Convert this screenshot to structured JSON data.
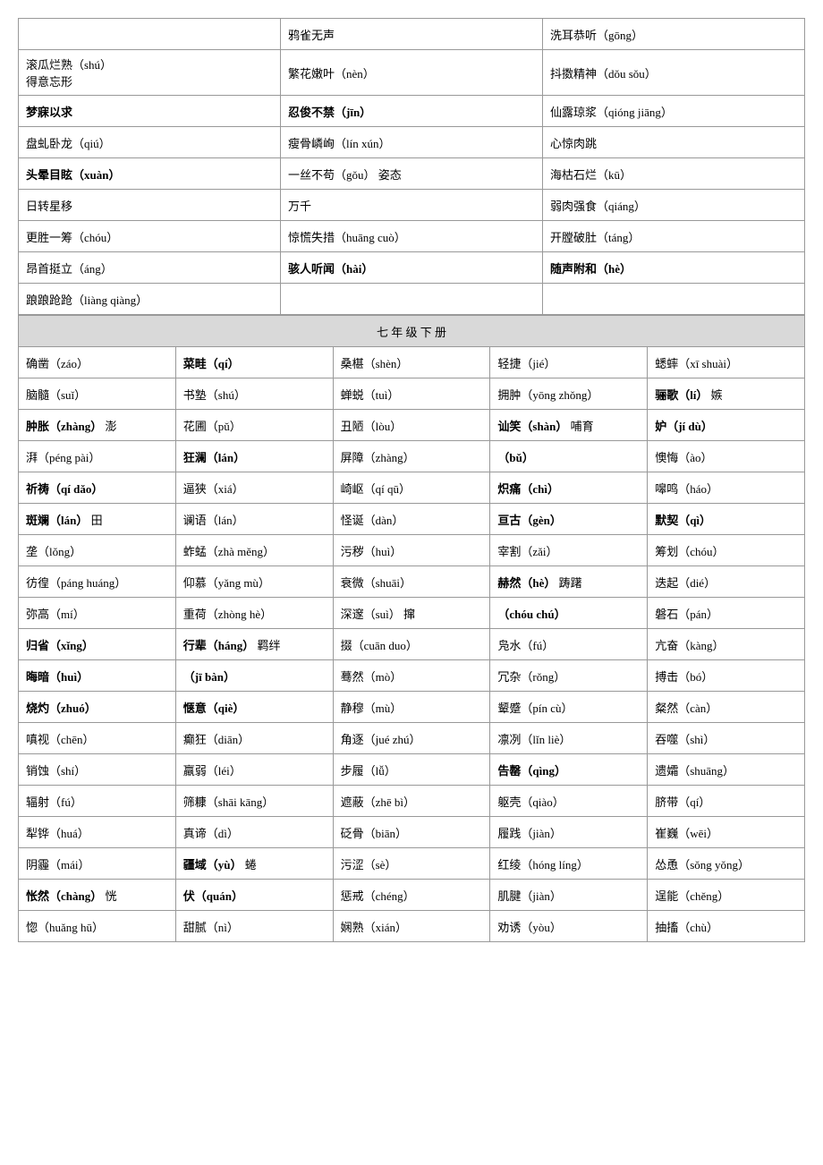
{
  "table1": {
    "rows": [
      [
        "",
        "鸦雀无声",
        "洗耳恭听（gōng）"
      ],
      [
        "滚瓜烂熟（shú）\n得意忘形",
        "繁花嫩叶（nèn）",
        "抖擞精神（dǒu sǒu）"
      ],
      [
        "梦寐以求",
        "忍俊不禁（jīn）",
        "仙露琼浆（qióng jiāng）"
      ],
      [
        "盘虬卧龙（qiú）",
        "瘦骨嶙峋（lín xún）",
        "心惊肉跳"
      ],
      [
        "头晕目眩（xuàn）",
        "一丝不苟（gǒu）  姿态",
        "海枯石烂（kū）"
      ],
      [
        "日转星移",
        "万千",
        "弱肉强食（qiáng）"
      ],
      [
        "更胜一筹（chóu）",
        "惊慌失措（huāng cuò）",
        "开膛破肚（táng）"
      ],
      [
        "昂首挺立（áng）",
        "骇人听闻（hài）",
        "随声附和（hè）"
      ],
      [
        "踉踉跄跄（liàng qiàng）",
        "",
        ""
      ]
    ],
    "bold_cells": [
      [
        2,
        0
      ],
      [
        4,
        0
      ],
      [
        2,
        1
      ],
      [
        7,
        1
      ],
      [
        7,
        2
      ]
    ]
  },
  "section_title": "七 年 级 下 册",
  "table2": {
    "rows": [
      [
        "确凿（záo）",
        "菜畦（qí）",
        "桑椹（shèn）",
        "轻捷（jié）",
        "蟋蟀（xī shuài）"
      ],
      [
        "脑髓（suǐ）",
        "书塾（shú）",
        "蝉蜕（tuì）",
        "拥肿（yōng zhǒng）",
        "骊歌（lí）  嫉"
      ],
      [
        "肿胀（zhàng）  澎",
        "花圃（pǔ）",
        "丑陋（lòu）",
        "讪笑（shàn）  哺育",
        "妒（jí dù）"
      ],
      [
        "湃（péng pài）",
        "狂澜（lán）",
        "屏障（zhàng）",
        "（bǔ）",
        "懊悔（ào）"
      ],
      [
        "祈祷（qí dǎo）",
        "逼狭（xiá）",
        "崎岖（qí qū）",
        "炽痛（chì）",
        "嗥鸣（háo）"
      ],
      [
        "斑斓（lán）  田",
        "谰语（lán）",
        "怪诞（dàn）",
        "亘古（gèn）",
        "默契（qì）"
      ],
      [
        "垄（lǒng）",
        "蚱蜢（zhà měng）",
        "污秽（huì）",
        "宰割（zǎi）",
        "筹划（chóu）"
      ],
      [
        "彷徨（páng huáng）",
        "仰慕（yǎng mù）",
        "衰微（shuāi）",
        "赫然（hè）  踌躇",
        "迭起（dié）"
      ],
      [
        "弥高（mí）",
        "重荷（zhòng hè）",
        "深邃（suì）  撺",
        "（chóu chú）",
        "磐石（pán）"
      ],
      [
        "归省（xǐng）",
        "行辈（háng）  羁绊",
        "掇（cuān duo）",
        "凫水（fú）",
        "亢奋（kàng）"
      ],
      [
        "晦暗（huì）",
        "（jī bàn）",
        "蓦然（mò）",
        "冗杂（rǒng）",
        "搏击（bó）"
      ],
      [
        "烧灼（zhuó）",
        "惬意（qiè）",
        "静穆（mù）",
        "颦蹙（pín cù）",
        "粲然（càn）"
      ],
      [
        "嗔视（chēn）",
        "癫狂（diān）",
        "角逐（jué zhú）",
        "凛冽（lǐn liè）",
        "吞噬（shì）"
      ],
      [
        "销蚀（shí）",
        "羸弱（léi）",
        "步履（lǚ）",
        "告罄（qìng）",
        "遗孀（shuāng）"
      ],
      [
        "辐射（fú）",
        "筛糠（shāi kāng）",
        "遮蔽（zhē bì）",
        "躯壳（qiào）",
        "脐带（qí）"
      ],
      [
        "犁铧（huá）",
        "真谛（dì）",
        "砭骨（biān）",
        "履践（jiàn）",
        "崔巍（wēi）"
      ],
      [
        "阴霾（mái）",
        "疆域（yù）  蜷",
        "污涩（sè）",
        "红绫（hóng líng）",
        "怂恿（sǒng yǒng）"
      ],
      [
        "怅然（chàng）  恍",
        "伏（quán）",
        "惩戒（chéng）",
        "肌腱（jiàn）",
        "逞能（chěng）"
      ],
      [
        "惚（huǎng hū）",
        "甜腻（nì）",
        "娴熟（xián）",
        "劝诱（yòu）",
        "抽搐（chù）"
      ]
    ],
    "bold_cells": [
      [
        0,
        1
      ],
      [
        2,
        0
      ],
      [
        3,
        1
      ],
      [
        4,
        0
      ],
      [
        4,
        3
      ],
      [
        5,
        0
      ],
      [
        5,
        3
      ],
      [
        5,
        4
      ],
      [
        8,
        3
      ],
      [
        9,
        0
      ],
      [
        10,
        0
      ],
      [
        11,
        0
      ],
      [
        11,
        1
      ],
      [
        13,
        3
      ],
      [
        17,
        0
      ],
      [
        17,
        1
      ],
      [
        1,
        4
      ],
      [
        2,
        3
      ],
      [
        2,
        4
      ],
      [
        3,
        3
      ],
      [
        7,
        3
      ],
      [
        9,
        1
      ],
      [
        10,
        1
      ],
      [
        16,
        1
      ]
    ]
  }
}
